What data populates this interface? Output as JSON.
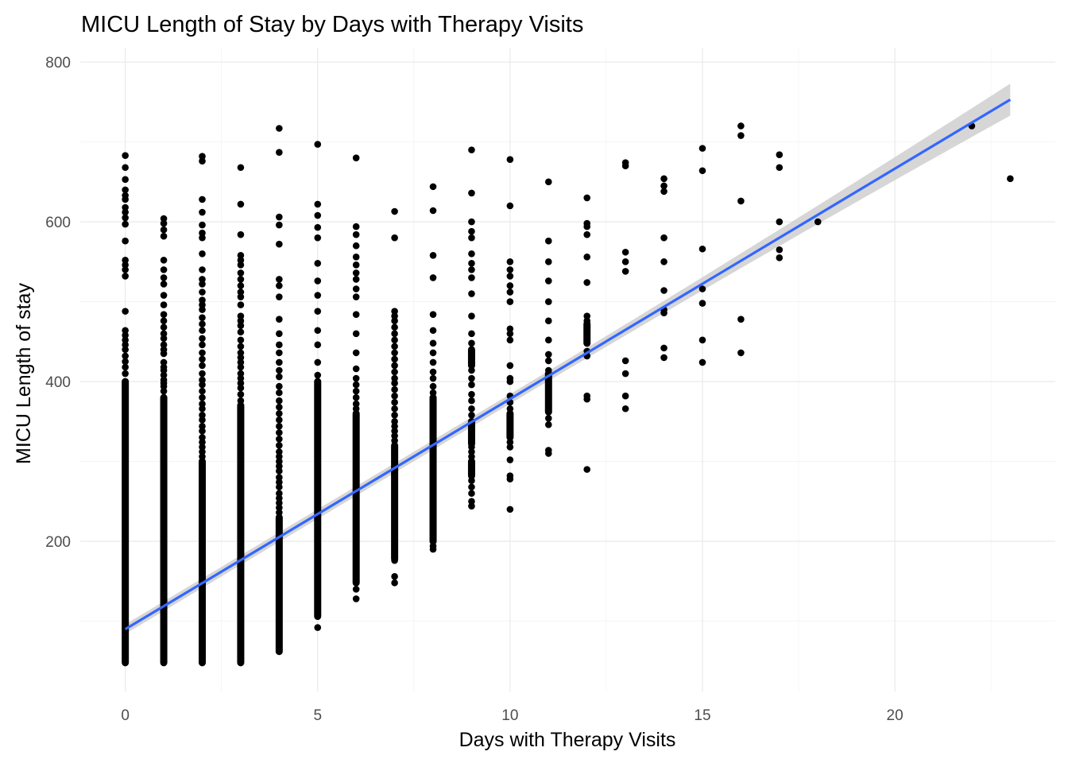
{
  "chart_data": {
    "type": "scatter",
    "title": "MICU Length of Stay by Days with Therapy Visits",
    "xlabel": "Days with Therapy Visits",
    "ylabel": "MICU Length of stay",
    "xlim": [
      -1.17,
      24.17
    ],
    "ylim": [
      12,
      818
    ],
    "x_ticks": [
      0,
      5,
      10,
      15,
      20
    ],
    "y_ticks": [
      200,
      400,
      600,
      800
    ],
    "grid": true,
    "legend": "none",
    "point_color": "#000000",
    "points_by_x": [
      {
        "x": 0,
        "ranges": [
          [
            48,
            400
          ]
        ],
        "y": [
          410,
          418,
          425,
          432,
          440,
          446,
          452,
          458,
          464,
          488,
          532,
          540,
          546,
          552,
          576,
          597,
          605,
          612,
          618,
          628,
          633,
          640,
          653,
          668,
          683
        ]
      },
      {
        "x": 1,
        "ranges": [
          [
            48,
            380
          ]
        ],
        "y": [
          388,
          394,
          398,
          402,
          408,
          414,
          418,
          424,
          435,
          440,
          446,
          454,
          460,
          468,
          476,
          484,
          496,
          508,
          522,
          530,
          540,
          552,
          582,
          590,
          598,
          604
        ]
      },
      {
        "x": 2,
        "ranges": [
          [
            48,
            300
          ]
        ],
        "y": [
          306,
          312,
          318,
          324,
          330,
          338,
          344,
          352,
          358,
          366,
          372,
          380,
          388,
          396,
          402,
          410,
          420,
          428,
          436,
          446,
          454,
          464,
          472,
          480,
          490,
          496,
          502,
          512,
          522,
          528,
          540,
          560,
          580,
          586,
          596,
          612,
          628,
          676,
          682
        ]
      },
      {
        "x": 3,
        "ranges": [
          [
            48,
            370
          ]
        ],
        "y": [
          376,
          384,
          392,
          398,
          404,
          410,
          418,
          424,
          430,
          436,
          444,
          452,
          462,
          470,
          476,
          482,
          496,
          506,
          512,
          520,
          528,
          536,
          546,
          552,
          558,
          584,
          622,
          668
        ]
      },
      {
        "x": 4,
        "ranges": [
          [
            62,
            230
          ]
        ],
        "y": [
          236,
          242,
          248,
          254,
          260,
          268,
          274,
          280,
          288,
          294,
          300,
          306,
          312,
          320,
          328,
          336,
          344,
          352,
          360,
          368,
          376,
          386,
          394,
          406,
          414,
          424,
          436,
          446,
          460,
          478,
          506,
          520,
          528,
          572,
          596,
          606,
          687,
          717
        ]
      },
      {
        "x": 5,
        "ranges": [
          [
            106,
            400
          ]
        ],
        "y": [
          92,
          408,
          424,
          446,
          464,
          488,
          508,
          526,
          548,
          580,
          593,
          608,
          622,
          697
        ]
      },
      {
        "x": 6,
        "ranges": [
          [
            148,
            360
          ]
        ],
        "y": [
          128,
          140,
          366,
          372,
          380,
          388,
          396,
          404,
          416,
          436,
          460,
          484,
          506,
          516,
          528,
          536,
          546,
          556,
          570,
          584,
          594,
          680
        ]
      },
      {
        "x": 7,
        "ranges": [
          [
            178,
            320
          ]
        ],
        "y": [
          148,
          156,
          176,
          326,
          332,
          338,
          344,
          350,
          358,
          366,
          374,
          382,
          390,
          398,
          404,
          412,
          420,
          428,
          436,
          444,
          452,
          460,
          468,
          476,
          482,
          488,
          580,
          613
        ]
      },
      {
        "x": 8,
        "ranges": [
          [
            200,
            380
          ]
        ],
        "y": [
          190,
          194,
          386,
          394,
          404,
          412,
          424,
          436,
          448,
          464,
          484,
          530,
          558,
          614,
          644
        ]
      },
      {
        "x": 9,
        "ranges": [
          [
            282,
            300
          ],
          [
            322,
            350
          ],
          [
            420,
            440
          ]
        ],
        "y": [
          244,
          250,
          260,
          268,
          276,
          306,
          312,
          318,
          358,
          366,
          376,
          384,
          396,
          404,
          414,
          448,
          460,
          482,
          510,
          530,
          540,
          548,
          560,
          580,
          588,
          600,
          636,
          690
        ]
      },
      {
        "x": 10,
        "ranges": [
          [
            330,
            360
          ]
        ],
        "y": [
          240,
          278,
          282,
          302,
          318,
          324,
          366,
          374,
          382,
          400,
          404,
          420,
          452,
          460,
          466,
          500,
          512,
          520,
          532,
          540,
          550,
          620,
          678
        ]
      },
      {
        "x": 11,
        "ranges": [
          [
            362,
            410
          ]
        ],
        "y": [
          310,
          314,
          346,
          354,
          414,
          426,
          434,
          452,
          476,
          500,
          526,
          550,
          576,
          650
        ]
      },
      {
        "x": 12,
        "ranges": [
          [
            448,
            472
          ]
        ],
        "y": [
          290,
          378,
          382,
          432,
          438,
          476,
          482,
          524,
          556,
          584,
          594,
          598,
          630
        ]
      },
      {
        "x": 13,
        "y": [
          366,
          382,
          410,
          426,
          538,
          550,
          562,
          670,
          674
        ]
      },
      {
        "x": 14,
        "y": [
          430,
          442,
          486,
          490,
          514,
          550,
          580,
          638,
          645,
          654
        ]
      },
      {
        "x": 15,
        "y": [
          424,
          452,
          498,
          516,
          566,
          664,
          692
        ]
      },
      {
        "x": 16,
        "y": [
          436,
          478,
          626,
          708,
          720
        ]
      },
      {
        "x": 17,
        "y": [
          555,
          565,
          600,
          668,
          684
        ]
      },
      {
        "x": 18,
        "y": [
          600
        ]
      },
      {
        "x": 22,
        "y": [
          720
        ]
      },
      {
        "x": 23,
        "y": [
          654
        ]
      }
    ],
    "trend": {
      "type": "linear",
      "color": "#3366ff",
      "x_range": [
        0,
        23
      ],
      "y_start": 90,
      "y_end": 753,
      "ci_band_color": "#cccccc",
      "ci_halfwidth_start": 6,
      "ci_halfwidth_mid": 6,
      "ci_halfwidth_end": 20
    }
  }
}
